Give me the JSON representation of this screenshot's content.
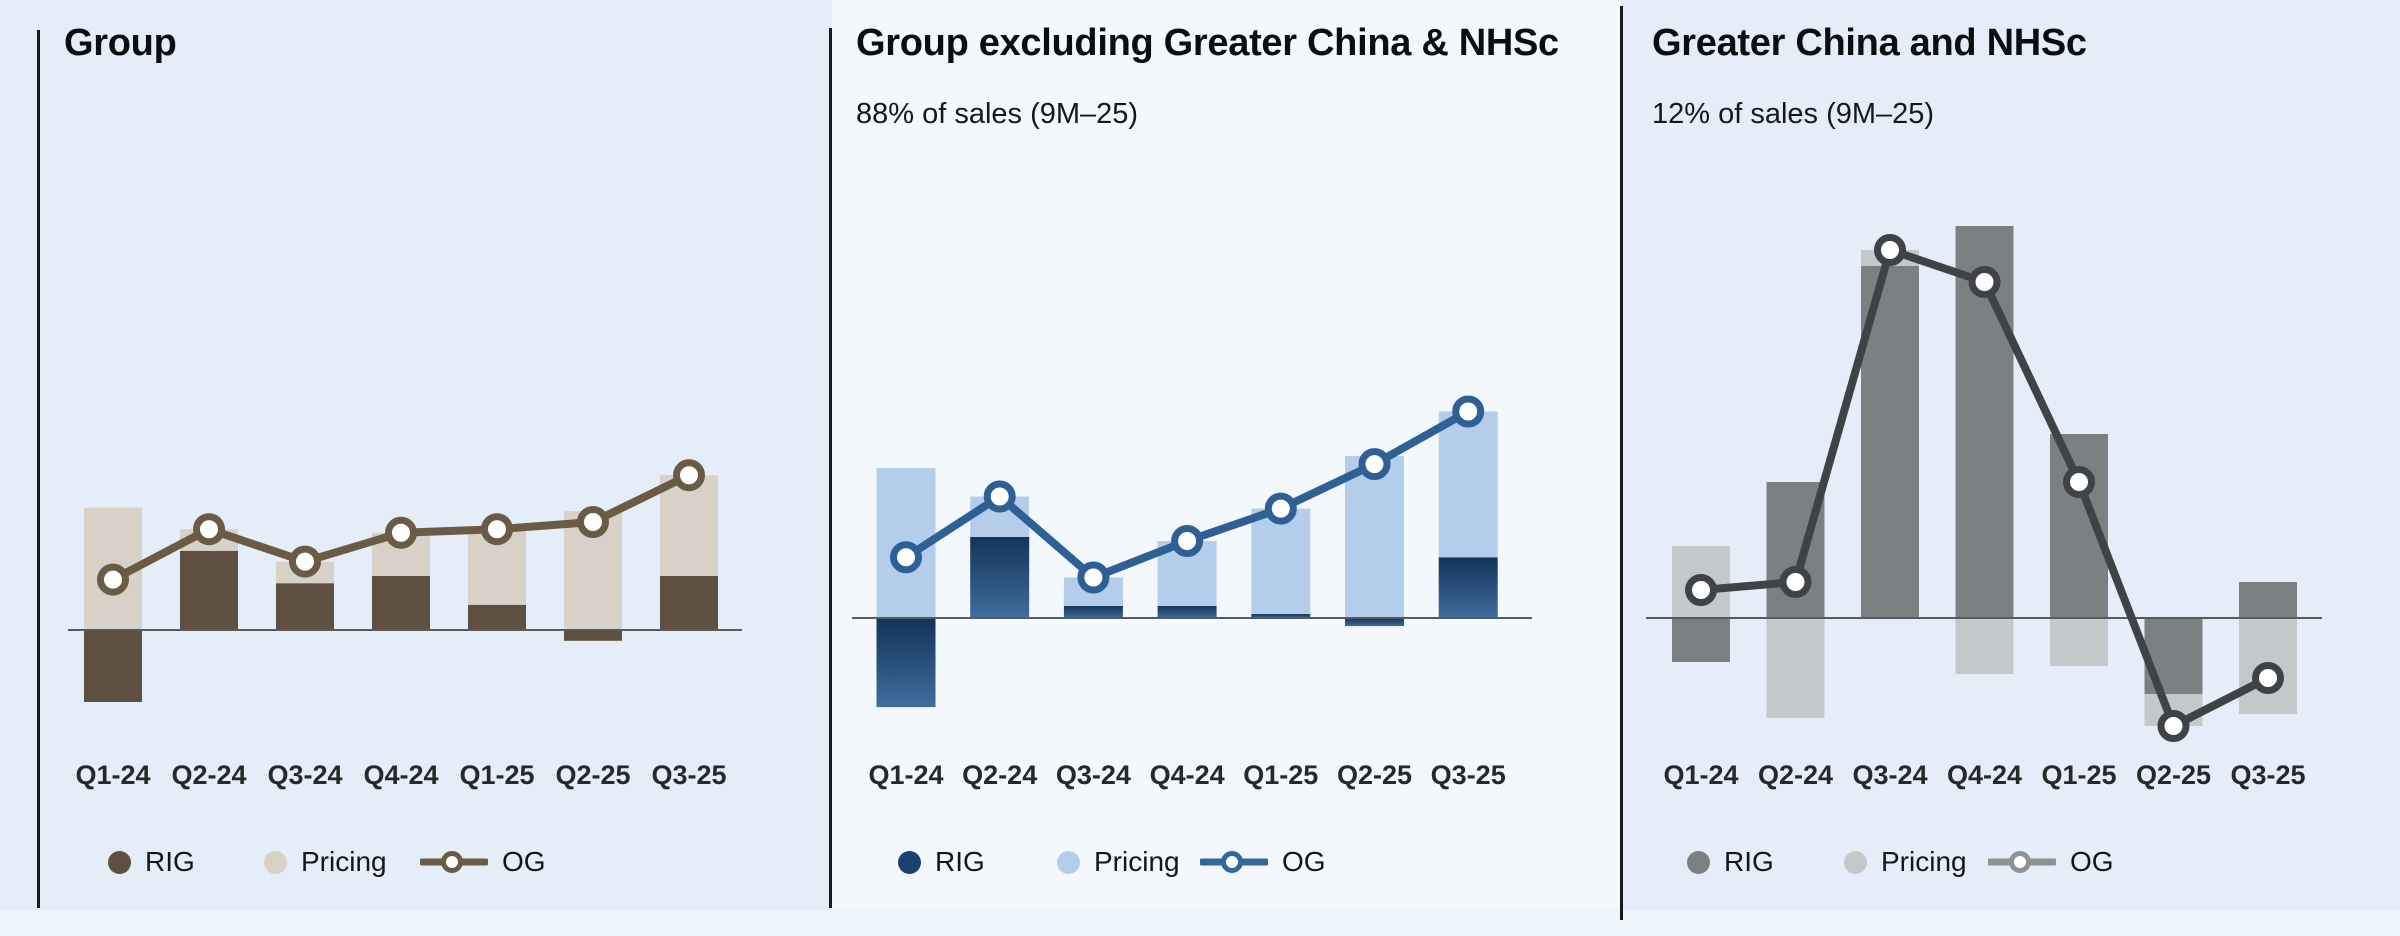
{
  "page": {
    "background": "#e5eef8",
    "panel2_background": "#f3f8fd",
    "bottom_strip_color": "#edf4fa",
    "divider_color": "#17191c",
    "zero_line_color": "#565b60",
    "marker_fill": "#ffffff"
  },
  "chart_data": [
    {
      "type": "bar",
      "stacked": true,
      "title": "Group",
      "subtitle": "",
      "categories": [
        "Q1-24",
        "Q2-24",
        "Q3-24",
        "Q4-24",
        "Q1-25",
        "Q2-25",
        "Q3-25"
      ],
      "series": [
        {
          "name": "RIG",
          "type": "bar",
          "values": [
            -2.0,
            2.2,
            1.3,
            1.5,
            0.7,
            -0.3,
            1.5
          ]
        },
        {
          "name": "Pricing",
          "type": "bar",
          "values": [
            3.4,
            0.6,
            0.6,
            1.2,
            2.1,
            3.3,
            2.8
          ]
        },
        {
          "name": "OG",
          "type": "line",
          "values": [
            1.4,
            2.8,
            1.9,
            2.7,
            2.8,
            3.0,
            4.3
          ]
        }
      ],
      "xlabel": "",
      "ylabel": "",
      "ylim": [
        -2.5,
        5.0
      ],
      "grid": false,
      "axis_labels_shown": false,
      "legend_position": "bottom",
      "colors": {
        "rig": "#5d5041",
        "pricing": "#d8d1c7",
        "og": "#6a5b45",
        "og_legend": "#6a5b45",
        "label": "#26282b"
      }
    },
    {
      "type": "bar",
      "stacked": true,
      "title": "Group excluding Greater China & NHSc",
      "subtitle": "88% of sales (9M–25)",
      "categories": [
        "Q1-24",
        "Q2-24",
        "Q3-24",
        "Q4-24",
        "Q1-25",
        "Q2-25",
        "Q3-25"
      ],
      "series": [
        {
          "name": "RIG",
          "type": "bar",
          "values": [
            -2.2,
            2.0,
            0.3,
            0.3,
            0.1,
            -0.2,
            1.5
          ]
        },
        {
          "name": "Pricing",
          "type": "bar",
          "values": [
            3.7,
            1.0,
            0.7,
            1.6,
            2.6,
            4.0,
            3.6
          ]
        },
        {
          "name": "OG",
          "type": "line",
          "values": [
            1.5,
            3.0,
            1.0,
            1.9,
            2.7,
            3.8,
            5.1
          ]
        }
      ],
      "xlabel": "",
      "ylabel": "",
      "ylim": [
        -3.0,
        5.5
      ],
      "grid": false,
      "axis_labels_shown": false,
      "legend_position": "bottom",
      "colors": {
        "rig": "#1b416e",
        "rig_gradient": [
          "#14335a",
          "#3f6d9d"
        ],
        "pricing": "#b4cdea",
        "og": "#2e6096",
        "og_legend": "#336699",
        "label": "#26282b"
      }
    },
    {
      "type": "bar",
      "stacked": true,
      "title": "Greater China and NHSc",
      "subtitle": "12% of sales (9M–25)",
      "categories": [
        "Q1-24",
        "Q2-24",
        "Q3-24",
        "Q4-24",
        "Q1-25",
        "Q2-25",
        "Q3-25"
      ],
      "series": [
        {
          "name": "RIG",
          "type": "bar",
          "values": [
            -1.1,
            3.4,
            8.8,
            9.8,
            4.6,
            -1.9,
            0.9
          ]
        },
        {
          "name": "Pricing",
          "type": "bar",
          "values": [
            1.8,
            -2.5,
            0.4,
            -1.4,
            -1.2,
            -0.8,
            -2.4
          ]
        },
        {
          "name": "OG",
          "type": "line",
          "values": [
            0.7,
            0.9,
            9.2,
            8.4,
            3.4,
            -2.7,
            -1.5
          ]
        }
      ],
      "xlabel": "",
      "ylabel": "",
      "ylim": [
        -3.5,
        10.0
      ],
      "grid": false,
      "axis_labels_shown": false,
      "legend_position": "bottom",
      "colors": {
        "rig": "#7d8083",
        "pricing": "#c5c8cb",
        "og": "#3f4348",
        "og_legend": "#8f9295",
        "label": "#26282b"
      }
    }
  ]
}
